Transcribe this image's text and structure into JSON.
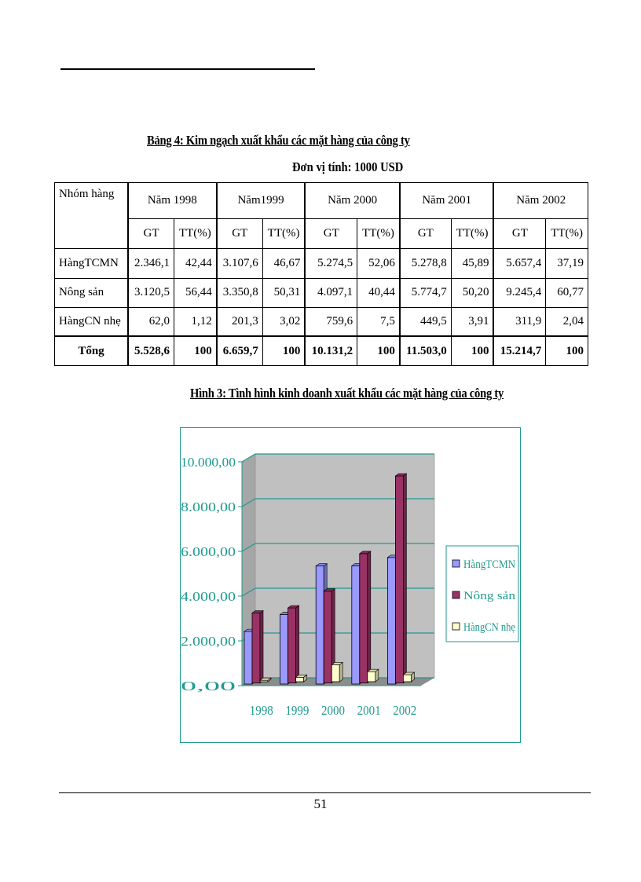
{
  "table": {
    "caption": "Bảng 4: Kim ngạch xuất khẩu các mặt hàng của công ty",
    "unit": "Đơn vị tính: 1000 USD",
    "group_header": "Nhóm hàng",
    "years": [
      "Năm 1998",
      "Năm1999",
      "Năm 2000",
      "Năm 2001",
      "Năm 2002"
    ],
    "sub_headers": [
      "GT",
      "TT(%)"
    ],
    "rows": [
      {
        "name": "HàngTCMN",
        "cells": [
          "2.346,1",
          "42,44",
          "3.107,6",
          "46,67",
          "5.274,5",
          "52,06",
          "5.278,8",
          "45,89",
          "5.657,4",
          "37,19"
        ]
      },
      {
        "name": "Nông sản",
        "cells": [
          "3.120,5",
          "56,44",
          "3.350,8",
          "50,31",
          "4.097,1",
          "40,44",
          "5.774,7",
          "50,20",
          "9.245,4",
          "60,77"
        ]
      },
      {
        "name": "HàngCN nhẹ",
        "cells": [
          "62,0",
          "1,12",
          "201,3",
          "3,02",
          "759,6",
          "7,5",
          "449,5",
          "3,91",
          "311,9",
          "2,04"
        ]
      }
    ],
    "total": {
      "name": "Tổng",
      "cells": [
        "5.528,6",
        "100",
        "6.659,7",
        "100",
        "10.131,2",
        "100",
        "11.503,0",
        "100",
        "15.214,7",
        "100"
      ]
    }
  },
  "figure": {
    "caption": "Hình 3: Tình hình kinh doanh xuất khẩu các mặt hàng của công ty"
  },
  "chart_data": {
    "type": "bar",
    "categories": [
      "1998",
      "1999",
      "2000",
      "2001",
      "2002"
    ],
    "series": [
      {
        "name": "HàngTCMN",
        "values": [
          2346.1,
          3107.6,
          5274.5,
          5278.8,
          5657.4
        ],
        "color": "#9999ff"
      },
      {
        "name": "Nông sản",
        "values": [
          3120.5,
          3350.8,
          4097.1,
          5774.7,
          9245.4
        ],
        "color": "#993366"
      },
      {
        "name": "HàngCN nhẹ",
        "values": [
          62.0,
          201.3,
          759.6,
          449.5,
          311.9
        ],
        "color": "#ffffcc"
      }
    ],
    "ylim": [
      0,
      10000
    ],
    "ytick_values": [
      0,
      2000,
      4000,
      6000,
      8000,
      10000
    ],
    "ytick_labels": [
      "0,00",
      "2.000,00",
      "4.000,00",
      "6.000,00",
      "8.000,00",
      "10.000,00"
    ],
    "grid": true,
    "legend_position": "right",
    "axis_color": "#1f9a8f"
  },
  "page_number": "51"
}
